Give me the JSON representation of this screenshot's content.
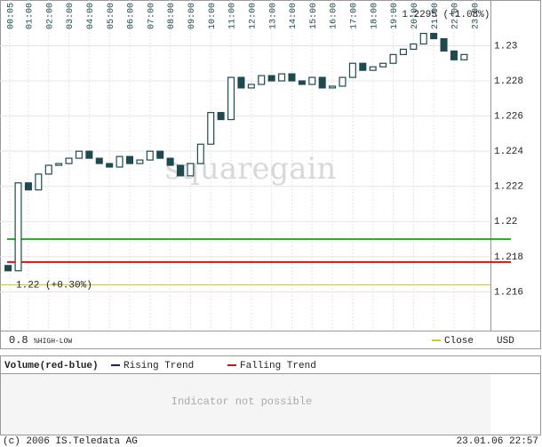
{
  "chart_data": {
    "type": "candlestick",
    "watermark": "squaregain",
    "x": [
      0,
      0.5,
      1,
      1.5,
      2,
      2.5,
      3,
      3.5,
      4,
      4.5,
      5,
      5.5,
      6,
      6.5,
      7,
      7.5,
      8,
      8.5,
      9,
      9.5,
      10,
      10.5,
      11,
      11.5,
      12,
      12.5,
      13,
      13.5,
      14,
      14.5,
      15,
      15.5,
      16,
      16.5,
      17,
      17.5,
      18,
      18.5,
      19,
      19.5,
      20,
      20.5,
      21,
      21.5,
      22,
      22.5
    ],
    "open": [
      1.2175,
      1.2172,
      1.2222,
      1.2218,
      1.2227,
      1.2232,
      1.2233,
      1.2236,
      1.224,
      1.2236,
      1.2233,
      1.2231,
      1.2237,
      1.2233,
      1.2235,
      1.224,
      1.2236,
      1.2232,
      1.2226,
      1.2233,
      1.2244,
      1.2262,
      1.2258,
      1.2282,
      1.2276,
      1.2278,
      1.2283,
      1.228,
      1.2284,
      1.228,
      1.2278,
      1.2282,
      1.2276,
      1.2277,
      1.2282,
      1.229,
      1.2286,
      1.2288,
      1.229,
      1.2295,
      1.2298,
      1.2301,
      1.2307,
      1.2304,
      1.2297,
      1.2292
    ],
    "close": [
      1.2172,
      1.2222,
      1.2218,
      1.2227,
      1.2232,
      1.2233,
      1.2236,
      1.224,
      1.2236,
      1.2233,
      1.2231,
      1.2237,
      1.2233,
      1.2235,
      1.224,
      1.2236,
      1.2232,
      1.2226,
      1.2233,
      1.2244,
      1.2262,
      1.2258,
      1.2282,
      1.2276,
      1.2278,
      1.2283,
      1.228,
      1.2284,
      1.228,
      1.2278,
      1.2282,
      1.2276,
      1.2277,
      1.2282,
      1.229,
      1.2286,
      1.2288,
      1.229,
      1.2295,
      1.2298,
      1.2301,
      1.2307,
      1.2304,
      1.2297,
      1.2292,
      1.2295
    ],
    "color": "#1d4a4f",
    "xlim": [
      -0.4,
      23.8
    ],
    "xticks": [
      {
        "value": 0.0833,
        "label": "00:05"
      },
      {
        "value": 1,
        "label": "01:00"
      },
      {
        "value": 2,
        "label": "02:00"
      },
      {
        "value": 3,
        "label": "03:00"
      },
      {
        "value": 4,
        "label": "04:00"
      },
      {
        "value": 5,
        "label": "05:00"
      },
      {
        "value": 6,
        "label": "06:00"
      },
      {
        "value": 7,
        "label": "07:00"
      },
      {
        "value": 8,
        "label": "08:00"
      },
      {
        "value": 9,
        "label": "09:00"
      },
      {
        "value": 10,
        "label": "10:00"
      },
      {
        "value": 11,
        "label": "11:00"
      },
      {
        "value": 12,
        "label": "12:00"
      },
      {
        "value": 13,
        "label": "13:00"
      },
      {
        "value": 14,
        "label": "14:00"
      },
      {
        "value": 15,
        "label": "15:00"
      },
      {
        "value": 16,
        "label": "16:00"
      },
      {
        "value": 17,
        "label": "17:00"
      },
      {
        "value": 18,
        "label": "18:00"
      },
      {
        "value": 19,
        "label": "19:00"
      },
      {
        "value": 20,
        "label": "20:00"
      },
      {
        "value": 21,
        "label": "21:00"
      },
      {
        "value": 22,
        "label": "22:00"
      },
      {
        "value": 23,
        "label": "23:00"
      }
    ],
    "ylim": [
      1.2138,
      1.2326
    ],
    "yticks": [
      1.216,
      1.218,
      1.22,
      1.222,
      1.224,
      1.226,
      1.228,
      1.23
    ],
    "grid": true,
    "trend_lines": [
      {
        "value": 1.219,
        "color": "#22aa22"
      },
      {
        "value": 1.2177,
        "color": "#dd1111"
      }
    ],
    "close_line": {
      "value": 1.2164,
      "color": "#cccc22"
    },
    "annotations": [
      "1.2295 (+1.08%)",
      "1.22 (+0.30%)"
    ],
    "scale": "0.8",
    "scale_label": "%HIGH-LOW",
    "legend": "Close",
    "currency": "USD"
  },
  "indicator": {
    "title": "Volume(red-blue)",
    "legend": [
      {
        "name": "Rising Trend",
        "color": "#1a1a7a"
      },
      {
        "name": "Falling Trend",
        "color": "#cc1111"
      }
    ],
    "message": "Indicator not possible"
  },
  "footer": {
    "copyright": "(c) 2006 IS.Teledata AG",
    "timestamp": "23.01.06 22:57"
  }
}
